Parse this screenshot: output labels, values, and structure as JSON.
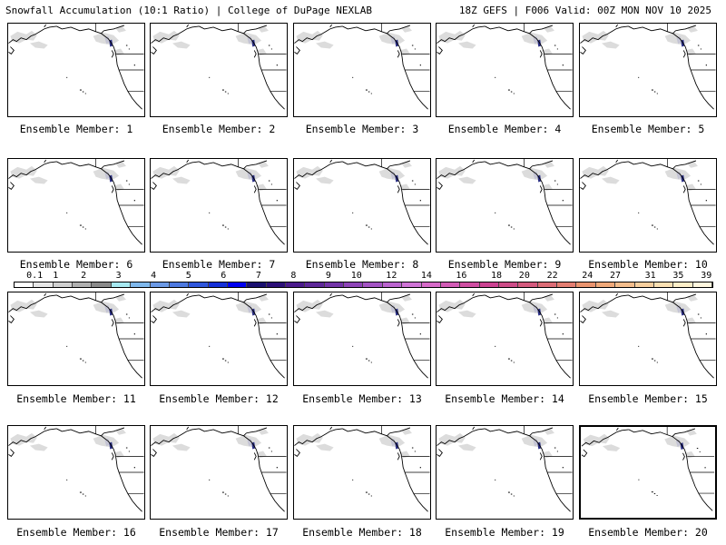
{
  "header": {
    "title": "Snowfall Accumulation (10:1 Ratio) | College of DuPage NEXLAB",
    "run": "18Z GEFS | F006 Valid: 00Z MON NOV 10 2025"
  },
  "members": [
    {
      "label": "Ensemble Member: 1"
    },
    {
      "label": "Ensemble Member: 2"
    },
    {
      "label": "Ensemble Member: 3"
    },
    {
      "label": "Ensemble Member: 4"
    },
    {
      "label": "Ensemble Member: 5"
    },
    {
      "label": "Ensemble Member: 6"
    },
    {
      "label": "Ensemble Member: 7"
    },
    {
      "label": "Ensemble Member: 8"
    },
    {
      "label": "Ensemble Member: 9"
    },
    {
      "label": "Ensemble Member: 10"
    },
    {
      "label": "Ensemble Member: 11"
    },
    {
      "label": "Ensemble Member: 12"
    },
    {
      "label": "Ensemble Member: 13"
    },
    {
      "label": "Ensemble Member: 14"
    },
    {
      "label": "Ensemble Member: 15"
    },
    {
      "label": "Ensemble Member: 16"
    },
    {
      "label": "Ensemble Member: 17"
    },
    {
      "label": "Ensemble Member: 18"
    },
    {
      "label": "Ensemble Member: 19"
    },
    {
      "label": "Ensemble Member: 20"
    }
  ],
  "colorbar": {
    "labels": [
      "0.1",
      "1",
      "2",
      "3",
      "4",
      "5",
      "6",
      "7",
      "8",
      "9",
      "10",
      "12",
      "14",
      "16",
      "18",
      "20",
      "22",
      "24",
      "27",
      "31",
      "35",
      "39"
    ],
    "colors": [
      "#ffffff",
      "#e6e6e6",
      "#cfcfcf",
      "#b0b0b0",
      "#8a8a8a",
      "#a6e8f0",
      "#7fb8ec",
      "#6c9ae6",
      "#4d79e0",
      "#2f56dc",
      "#1530d8",
      "#0000f0",
      "#1a1070",
      "#2c0f78",
      "#4b1a8c",
      "#5e2899",
      "#7334a8",
      "#8e44b8",
      "#a454c4",
      "#bb64cf",
      "#cf74d6",
      "#d66ac8",
      "#d25cb6",
      "#cf4ea2",
      "#cc4292",
      "#cd4c88",
      "#d45a7e",
      "#dc6c76",
      "#e47e72",
      "#ea946f",
      "#f0a97a",
      "#f4bd8c",
      "#f8cf9e",
      "#fbe0b3",
      "#fdeec8",
      "#fff7de"
    ]
  }
}
